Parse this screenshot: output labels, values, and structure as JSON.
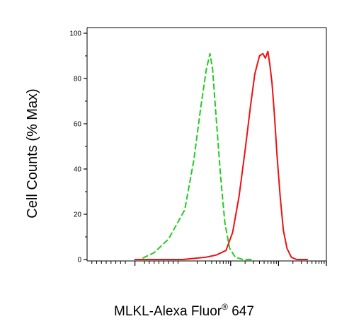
{
  "chart_data": {
    "type": "line",
    "title": "",
    "xlabel": "MLKL-Alexa Fluor",
    "xlabel_superscript": "®",
    "xlabel_suffix": " 647",
    "ylabel": "Cell Counts (% Max)",
    "x_scale": "log",
    "xlim": [
      -100,
      100000
    ],
    "ylim": [
      0,
      100
    ],
    "y_ticks": [
      "0",
      "20",
      "40",
      "60",
      "80",
      "100"
    ],
    "grid": false,
    "series": [
      {
        "style": "dashed",
        "color": "#22cc22",
        "points": [
          [
            0,
            0
          ],
          [
            10,
            0
          ],
          [
            20,
            1
          ],
          [
            40,
            3
          ],
          [
            70,
            9
          ],
          [
            110,
            22
          ],
          [
            170,
            44
          ],
          [
            240,
            68
          ],
          [
            310,
            84
          ],
          [
            370,
            91
          ],
          [
            420,
            84
          ],
          [
            500,
            62
          ],
          [
            620,
            36
          ],
          [
            760,
            16
          ],
          [
            950,
            5
          ],
          [
            1250,
            1
          ],
          [
            1800,
            0
          ],
          [
            3000,
            0
          ]
        ]
      },
      {
        "style": "solid",
        "color": "#ee1111",
        "points": [
          [
            0,
            0
          ],
          [
            100,
            0
          ],
          [
            300,
            1
          ],
          [
            500,
            2
          ],
          [
            800,
            4
          ],
          [
            1100,
            12
          ],
          [
            1500,
            28
          ],
          [
            2000,
            48
          ],
          [
            2600,
            68
          ],
          [
            3200,
            82
          ],
          [
            4000,
            90
          ],
          [
            4700,
            91
          ],
          [
            5300,
            89
          ],
          [
            6000,
            92
          ],
          [
            6600,
            86
          ],
          [
            7300,
            78
          ],
          [
            8200,
            64
          ],
          [
            9300,
            46
          ],
          [
            10800,
            28
          ],
          [
            12600,
            13
          ],
          [
            15000,
            5
          ],
          [
            18500,
            1
          ],
          [
            24000,
            0
          ],
          [
            40000,
            0
          ]
        ]
      }
    ]
  },
  "colors": {
    "axis": "#000000",
    "background": "#ffffff"
  }
}
